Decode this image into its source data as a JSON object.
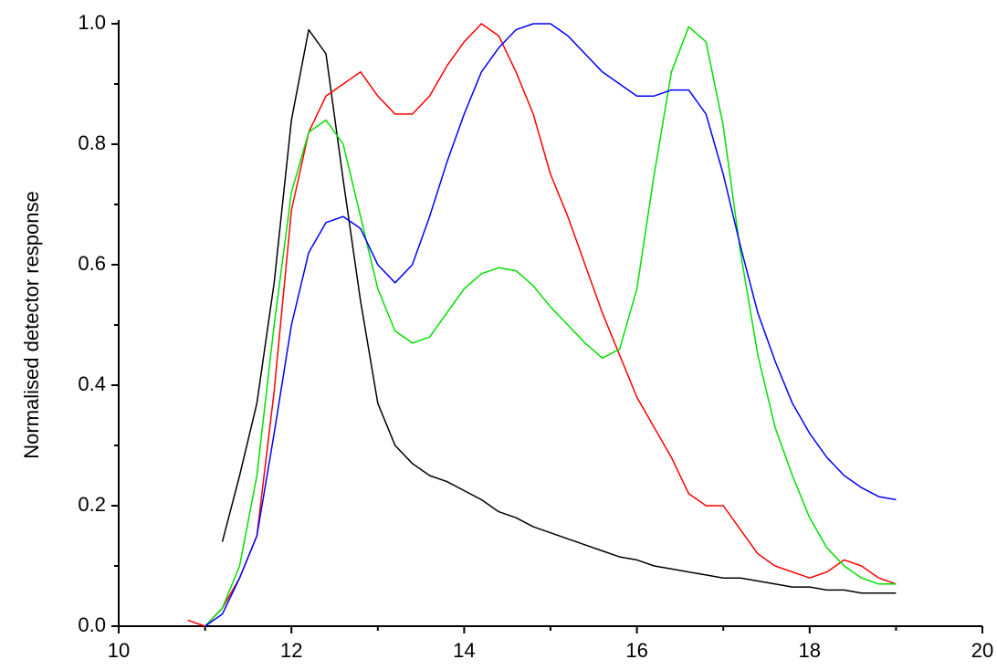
{
  "chart_data": {
    "type": "line",
    "y_label": "Normalised detector response",
    "x": [
      10.8,
      11.0,
      11.2,
      11.4,
      11.6,
      11.8,
      12.0,
      12.2,
      12.4,
      12.6,
      12.8,
      13.0,
      13.2,
      13.4,
      13.6,
      13.8,
      14.0,
      14.2,
      14.4,
      14.6,
      14.8,
      15.0,
      15.2,
      15.4,
      15.6,
      15.8,
      16.0,
      16.2,
      16.4,
      16.6,
      16.8,
      17.0,
      17.2,
      17.4,
      17.6,
      17.8,
      18.0,
      18.2,
      18.4,
      18.6,
      18.8,
      19.0
    ],
    "series": [
      {
        "color": "#000000",
        "values": [
          null,
          null,
          0.14,
          0.25,
          0.37,
          0.57,
          0.84,
          0.99,
          0.95,
          0.74,
          0.54,
          0.37,
          0.3,
          0.27,
          0.25,
          0.24,
          0.225,
          0.21,
          0.19,
          0.18,
          0.165,
          0.155,
          0.145,
          0.135,
          0.125,
          0.115,
          0.11,
          0.1,
          0.095,
          0.09,
          0.085,
          0.08,
          0.08,
          0.075,
          0.07,
          0.065,
          0.065,
          0.06,
          0.06,
          0.055,
          0.055,
          0.055
        ]
      },
      {
        "color": "#ff0000",
        "values": [
          0.01,
          0.0,
          0.03,
          0.08,
          0.15,
          0.39,
          0.69,
          0.82,
          0.88,
          0.9,
          0.92,
          0.88,
          0.85,
          0.85,
          0.88,
          0.93,
          0.97,
          1.0,
          0.98,
          0.92,
          0.85,
          0.75,
          0.68,
          0.6,
          0.52,
          0.45,
          0.38,
          0.33,
          0.28,
          0.22,
          0.2,
          0.2,
          0.16,
          0.12,
          0.1,
          0.09,
          0.08,
          0.09,
          0.11,
          0.1,
          0.08,
          0.07
        ]
      },
      {
        "color": "#00e000",
        "values": [
          null,
          0.0,
          0.03,
          0.1,
          0.25,
          0.5,
          0.72,
          0.82,
          0.84,
          0.8,
          0.68,
          0.56,
          0.49,
          0.47,
          0.48,
          0.52,
          0.56,
          0.585,
          0.595,
          0.59,
          0.565,
          0.53,
          0.5,
          0.47,
          0.445,
          0.46,
          0.56,
          0.75,
          0.92,
          0.995,
          0.97,
          0.83,
          0.62,
          0.45,
          0.33,
          0.25,
          0.18,
          0.13,
          0.1,
          0.08,
          0.07,
          0.07
        ]
      },
      {
        "color": "#0000ff",
        "values": [
          null,
          0.0,
          0.02,
          0.08,
          0.15,
          0.32,
          0.5,
          0.62,
          0.67,
          0.68,
          0.66,
          0.6,
          0.57,
          0.6,
          0.68,
          0.77,
          0.85,
          0.92,
          0.96,
          0.99,
          1.0,
          1.0,
          0.98,
          0.95,
          0.92,
          0.9,
          0.88,
          0.88,
          0.89,
          0.89,
          0.85,
          0.75,
          0.63,
          0.52,
          0.44,
          0.37,
          0.32,
          0.28,
          0.25,
          0.23,
          0.215,
          0.21
        ]
      }
    ],
    "xlim": [
      10,
      20
    ],
    "xticks": [
      10,
      12,
      14,
      16,
      18,
      20
    ],
    "ylim": [
      0,
      1
    ],
    "yticks": [
      {
        "value": 0,
        "label": "0.0"
      },
      0.2,
      0.4,
      0.6,
      0.8,
      {
        "value": 1,
        "label": "1.0"
      }
    ],
    "grid": false
  }
}
